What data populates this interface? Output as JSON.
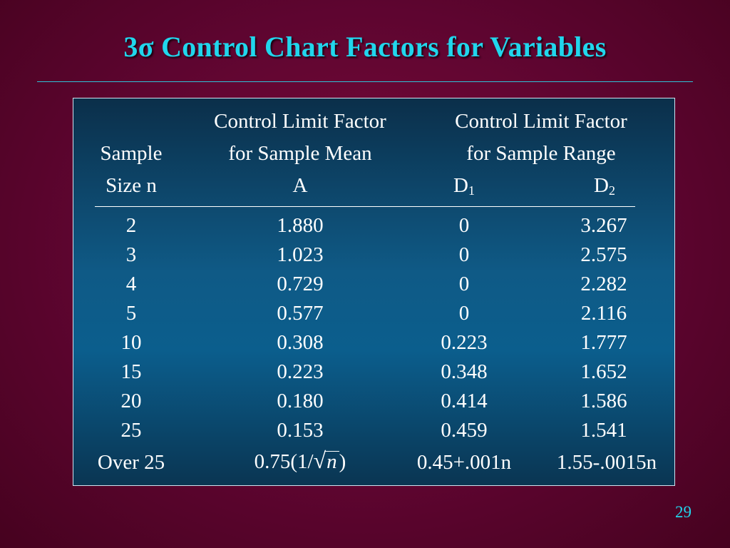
{
  "title": "3σ Control Chart Factors for Variables",
  "header": {
    "col1": [
      "",
      "Sample",
      "Size n"
    ],
    "col2": [
      "Control Limit Factor",
      "for Sample Mean",
      "A"
    ],
    "col3": [
      "Control Limit Factor",
      "for Sample Range"
    ],
    "d1": {
      "letter": "D",
      "sub": "1"
    },
    "d2": {
      "letter": "D",
      "sub": "2"
    }
  },
  "rows": [
    [
      "2",
      "1.880",
      "0",
      "3.267"
    ],
    [
      "3",
      "1.023",
      "0",
      "2.575"
    ],
    [
      "4",
      "0.729",
      "0",
      "2.282"
    ],
    [
      "5",
      "0.577",
      "0",
      "2.116"
    ],
    [
      "10",
      "0.308",
      "0.223",
      "1.777"
    ],
    [
      "15",
      "0.223",
      "0.348",
      "1.652"
    ],
    [
      "20",
      "0.180",
      "0.414",
      "1.586"
    ],
    [
      "25",
      "0.153",
      "0.459",
      "1.541"
    ]
  ],
  "last_row": {
    "size": "Over 25",
    "a_prefix": "0.75(1/",
    "a_sqrt_sign": "√",
    "a_var": "n",
    "a_suffix": ")",
    "d1": "0.45+.001n",
    "d2": "1.55-.0015n"
  },
  "page_number": "29"
}
